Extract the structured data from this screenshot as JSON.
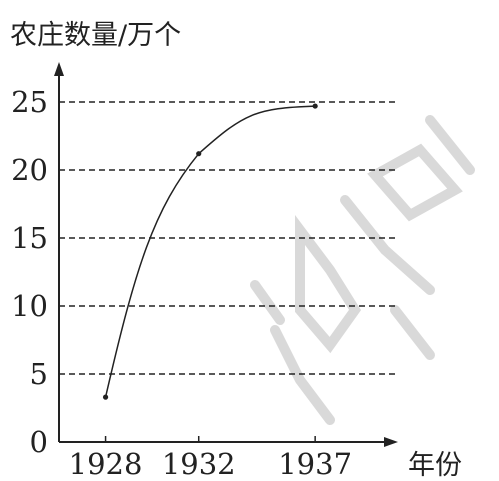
{
  "chart_data": {
    "type": "line",
    "ylabel": "农庄数量/万个",
    "xlabel": "年份",
    "x": [
      "1928",
      "1932",
      "1937"
    ],
    "series": [
      {
        "values": [
          3.3,
          21.2,
          24.7
        ]
      }
    ],
    "ylim": [
      0,
      25
    ],
    "yticks": [
      0,
      5,
      10,
      15,
      20,
      25
    ],
    "grid": "dashed-horizontal"
  },
  "colors": {
    "line": "#222222",
    "grid": "#222222",
    "watermark": "#d8d8d8"
  }
}
